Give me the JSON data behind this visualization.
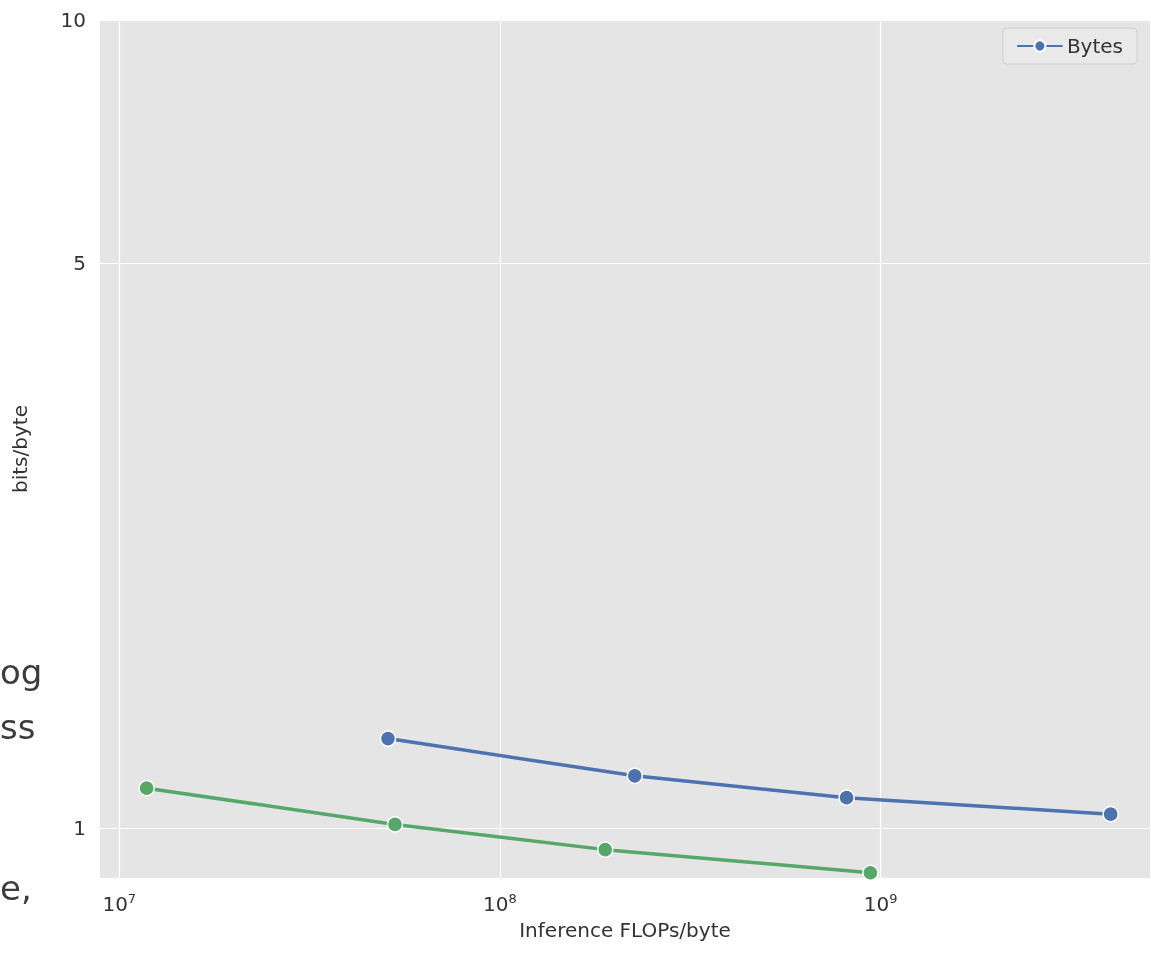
{
  "chart_data": {
    "type": "line",
    "xlabel": "Inference FLOPs/byte",
    "ylabel": "bits/byte",
    "log": "xy",
    "grid": true,
    "legend": "top right",
    "marker": "circle",
    "line_style": "solid",
    "xlim": [
      8900000,
      5100000000
    ],
    "ylim": [
      0.867,
      10
    ],
    "xticks": [
      {
        "value": 10000000,
        "label": "10$^{7}$"
      },
      {
        "value": 100000000,
        "label": "10$^{8}$"
      },
      {
        "value": 1000000000,
        "label": "10$^{9}$"
      }
    ],
    "yticks": [
      1,
      5,
      10
    ],
    "series": [
      {
        "name": "Bytes",
        "color": "#4c72b0",
        "x": [
          50800000,
          226000000,
          814000000,
          4020000000
        ],
        "values": [
          1.29,
          1.16,
          1.09,
          1.04
        ]
      },
      {
        "color": "#55a868",
        "x": [
          11800000,
          53000000,
          189000000,
          940000000
        ],
        "values": [
          1.12,
          1.01,
          0.94,
          0.88
        ]
      }
    ],
    "annotations": [
      "og",
      "ss",
      "e,"
    ]
  }
}
